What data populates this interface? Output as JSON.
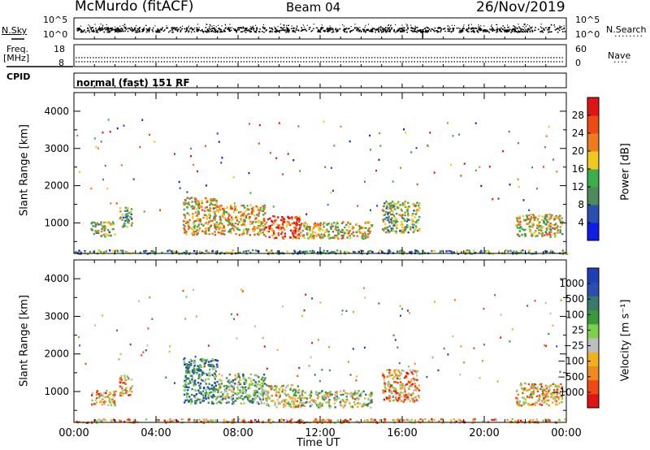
{
  "header": {
    "station": "McMurdo (fitACF)",
    "beam": "Beam 04",
    "date": "26/Nov/2019"
  },
  "panels": {
    "nsky": {
      "left_label": "N.Sky",
      "right_label": "N.Search",
      "left_ticks": [
        "10^5",
        "10^0"
      ],
      "right_ticks": [
        "10^5",
        "10^0"
      ]
    },
    "freq": {
      "left_label_1": "Freq.",
      "left_label_2": "[MHz]",
      "left_ticks": [
        "18",
        "8"
      ],
      "right_label": "Nave",
      "right_ticks": [
        "60",
        "0"
      ]
    },
    "cpid": {
      "label": "CPID",
      "text": "normal (fast) 151 RF"
    }
  },
  "colors": {
    "power": [
      "#0f1ee6",
      "#2a4fb0",
      "#4f8a5a",
      "#3cae4a",
      "#f0c81e",
      "#f07a1e",
      "#f04a14",
      "#e01414"
    ],
    "velocity": [
      "#e01414",
      "#f04a14",
      "#f08a1e",
      "#f0b020",
      "#bdbdbd",
      "#7ed04a",
      "#3a9a3a",
      "#3a7a6a",
      "#2a4fb0",
      "#1f3fb8"
    ]
  },
  "chart_data": [
    {
      "type": "heatmap",
      "name": "power",
      "xlabel": "",
      "ylabel": "Slant Range [km]",
      "xlim": [
        0,
        24
      ],
      "ylim": [
        180,
        4500
      ],
      "x_ticks": [
        "00:00",
        "04:00",
        "08:00",
        "12:00",
        "16:00",
        "20:00",
        "00:00"
      ],
      "y_ticks": [
        1000,
        2000,
        3000,
        4000
      ],
      "colorbar": {
        "label": "Power [dB]",
        "ticks": [
          "4",
          "8",
          "12",
          "16",
          "20",
          "24",
          "28"
        ],
        "range": [
          0,
          30
        ]
      },
      "echo_regions": [
        {
          "t0": 0.0,
          "t1": 24.0,
          "r0": 190,
          "r1": 290,
          "level": 0.35
        },
        {
          "t0": 0.8,
          "t1": 2.0,
          "r0": 650,
          "r1": 1050,
          "level": 0.5
        },
        {
          "t0": 2.2,
          "t1": 2.8,
          "r0": 900,
          "r1": 1450,
          "level": 0.4
        },
        {
          "t0": 5.3,
          "t1": 7.0,
          "r0": 700,
          "r1": 1700,
          "level": 0.6
        },
        {
          "t0": 7.0,
          "t1": 9.3,
          "r0": 700,
          "r1": 1500,
          "level": 0.6
        },
        {
          "t0": 9.3,
          "t1": 11.0,
          "r0": 600,
          "r1": 1200,
          "level": 0.8
        },
        {
          "t0": 11.0,
          "t1": 14.5,
          "r0": 600,
          "r1": 1050,
          "level": 0.55
        },
        {
          "t0": 15.0,
          "t1": 16.8,
          "r0": 750,
          "r1": 1600,
          "level": 0.45
        },
        {
          "t0": 21.5,
          "t1": 23.8,
          "r0": 650,
          "r1": 1250,
          "level": 0.55
        }
      ]
    },
    {
      "type": "heatmap",
      "name": "velocity",
      "xlabel": "Time UT",
      "ylabel": "Slant Range [km]",
      "xlim": [
        0,
        24
      ],
      "ylim": [
        180,
        4500
      ],
      "x_ticks": [
        "00:00",
        "04:00",
        "08:00",
        "12:00",
        "16:00",
        "20:00",
        "00:00"
      ],
      "y_ticks": [
        1000,
        2000,
        3000,
        4000
      ],
      "colorbar": {
        "label": "Velocity [m s⁻¹]",
        "ticks": [
          "1000",
          "500",
          "100",
          "25",
          "−25",
          "−100",
          "−500",
          "−1000"
        ],
        "range": [
          -1000,
          1000
        ]
      },
      "echo_regions": [
        {
          "t0": 0.0,
          "t1": 24.0,
          "r0": 190,
          "r1": 290,
          "level": 0.3
        },
        {
          "t0": 0.8,
          "t1": 2.0,
          "r0": 650,
          "r1": 1050,
          "level": 0.35
        },
        {
          "t0": 2.2,
          "t1": 2.8,
          "r0": 900,
          "r1": 1450,
          "level": 0.3
        },
        {
          "t0": 5.3,
          "t1": 7.0,
          "r0": 700,
          "r1": 1900,
          "level": 0.75
        },
        {
          "t0": 7.0,
          "t1": 9.3,
          "r0": 700,
          "r1": 1500,
          "level": 0.6
        },
        {
          "t0": 9.3,
          "t1": 11.0,
          "r0": 600,
          "r1": 1200,
          "level": 0.4
        },
        {
          "t0": 11.0,
          "t1": 14.5,
          "r0": 600,
          "r1": 1050,
          "level": 0.5
        },
        {
          "t0": 15.0,
          "t1": 16.8,
          "r0": 750,
          "r1": 1600,
          "level": 0.3
        },
        {
          "t0": 21.5,
          "t1": 23.8,
          "r0": 650,
          "r1": 1250,
          "level": 0.35
        }
      ]
    }
  ]
}
